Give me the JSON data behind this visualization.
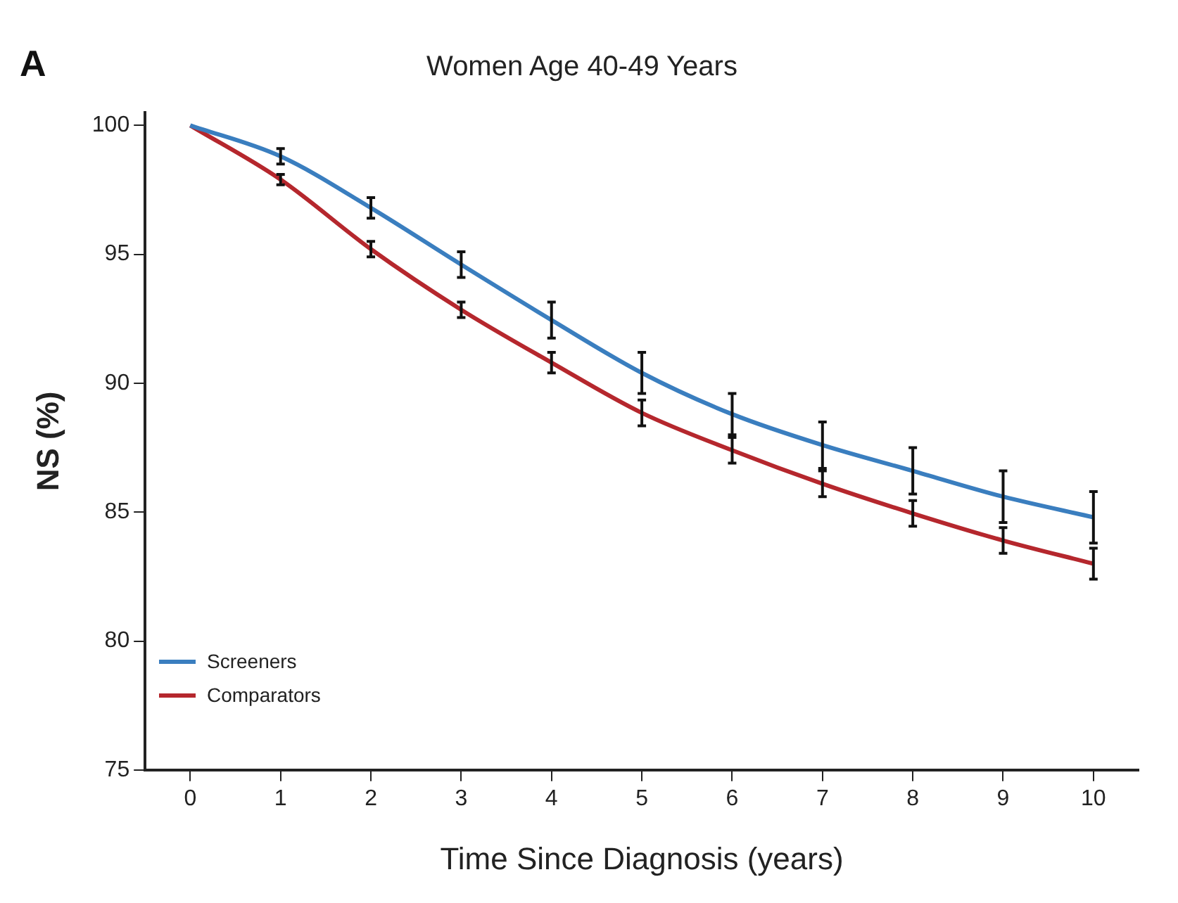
{
  "chart_data": {
    "type": "line",
    "title": "Women Age 40-49 Years",
    "xlabel": "Time Since Diagnosis (years)",
    "ylabel": "NS (%)",
    "annotations": [
      "A"
    ],
    "x": [
      0,
      1,
      2,
      3,
      4,
      5,
      6,
      7,
      8,
      9,
      10
    ],
    "series": [
      {
        "name": "Screeners",
        "color": "#3a7ebf",
        "values": [
          100,
          98.8,
          96.8,
          94.6,
          92.45,
          90.4,
          88.8,
          87.6,
          86.6,
          85.6,
          84.8
        ],
        "errors": [
          null,
          0.3,
          0.4,
          0.5,
          0.7,
          0.8,
          0.8,
          0.9,
          0.9,
          1.0,
          1.0
        ]
      },
      {
        "name": "Comparators",
        "color": "#b5272d",
        "values": [
          100,
          97.9,
          95.2,
          92.85,
          90.8,
          88.85,
          87.4,
          86.1,
          84.95,
          83.9,
          83.0
        ],
        "errors": [
          null,
          0.2,
          0.3,
          0.3,
          0.4,
          0.5,
          0.5,
          0.5,
          0.5,
          0.5,
          0.6
        ]
      }
    ],
    "xlim": [
      -0.5,
      10.5
    ],
    "xticks": [
      0,
      1,
      2,
      3,
      4,
      5,
      6,
      7,
      8,
      9,
      10
    ],
    "ylim": [
      75,
      100.5
    ],
    "yticks": [
      75,
      80,
      85,
      90,
      95,
      100
    ],
    "grid": false,
    "legend": "bottom left",
    "marker": "none",
    "line_style": "solid"
  }
}
